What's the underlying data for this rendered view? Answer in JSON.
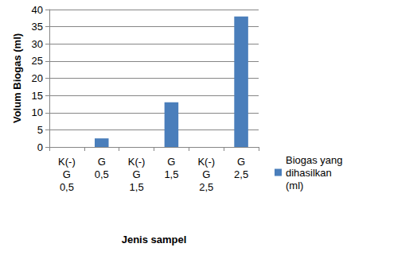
{
  "chart_data": {
    "type": "bar",
    "x_label": "Jenis sampel",
    "y_label": "Volum Biogas (ml)",
    "categories": [
      "K(-) G 0,5",
      "G 0,5",
      "K(-) G 1,5",
      "G 1,5",
      "K(-) G 2,5",
      "G 2,5"
    ],
    "series": [
      {
        "name": "Biogas yang dihasilkan (ml)",
        "color": "#4a7ebb",
        "values": [
          0,
          2.5,
          0,
          13,
          0,
          38
        ]
      }
    ],
    "ylim": [
      0,
      40
    ],
    "yticks": [
      0,
      5,
      10,
      15,
      20,
      25,
      30,
      35,
      40
    ],
    "grid": true,
    "legend": "right"
  }
}
